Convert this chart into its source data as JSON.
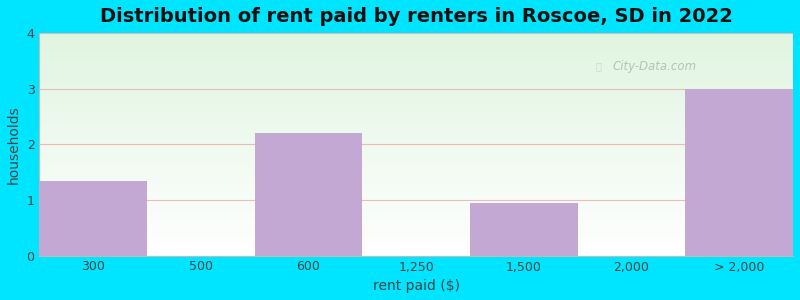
{
  "title": "Distribution of rent paid by renters in Roscoe, SD in 2022",
  "xlabel": "rent paid ($)",
  "ylabel": "households",
  "tick_labels": [
    "300",
    "500",
    "600",
    "1,250",
    "1,500",
    "2,000",
    "> 2,000"
  ],
  "bar_lefts": [
    0,
    1,
    2,
    3,
    4,
    5,
    6
  ],
  "bar_widths": [
    1,
    1,
    1,
    1,
    1,
    1,
    1
  ],
  "values": [
    1.35,
    0,
    2.2,
    0,
    0.95,
    0,
    3.0
  ],
  "bar_color": "#c4a8d4",
  "bar_edgecolor": "none",
  "ylim": [
    0,
    4
  ],
  "yticks": [
    0,
    1,
    2,
    3,
    4
  ],
  "background_outer": "#00e5ff",
  "title_fontsize": 14,
  "axis_label_fontsize": 10,
  "tick_fontsize": 9,
  "grid_color": "#e8a0a0",
  "watermark_text": "City-Data.com",
  "watermark_color": "#b0b8b0"
}
